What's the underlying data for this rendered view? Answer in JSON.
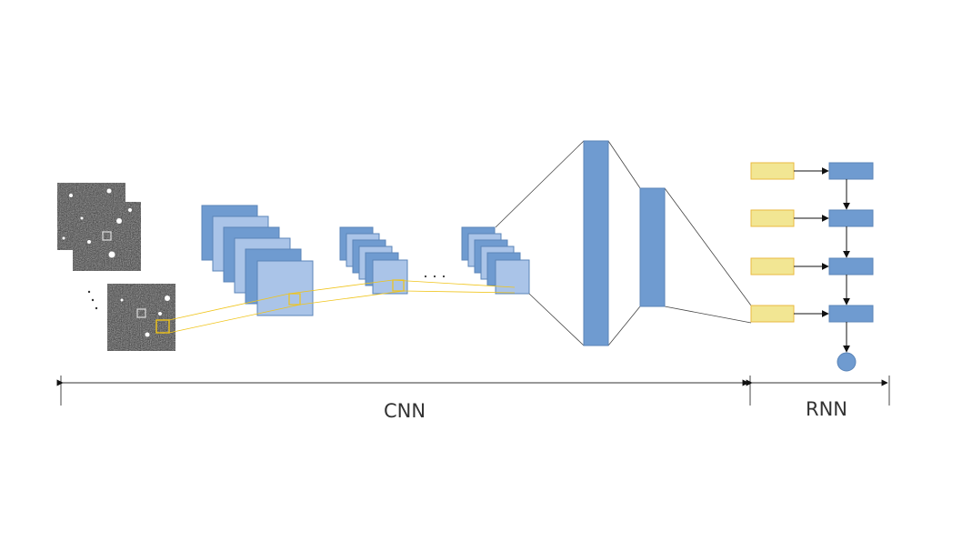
{
  "labels": {
    "cnn": "CNN",
    "rnn": "RNN"
  },
  "colors": {
    "feature_map_dark": "#6f9bd0",
    "feature_map_light": "#aac4e8",
    "feature_map_stroke": "#5b85b8",
    "input_token": "#f2e693",
    "input_token_stroke": "#e9b940",
    "receptive_field": "#f0c419",
    "line": "#444444",
    "image_bg": "#3a3a3a"
  }
}
